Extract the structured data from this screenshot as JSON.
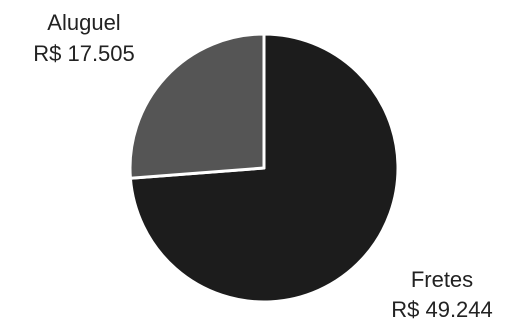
{
  "chart_data": {
    "type": "pie",
    "title": "",
    "slices": [
      {
        "name": "Fretes",
        "value_label": "R$ 49.244",
        "value": 49244,
        "color": "#1c1c1c"
      },
      {
        "name": "Aluguel",
        "value_label": "R$ 17.505",
        "value": 17505,
        "color": "#555555"
      }
    ],
    "slice_border_color": "#ffffff",
    "legend": "none"
  }
}
